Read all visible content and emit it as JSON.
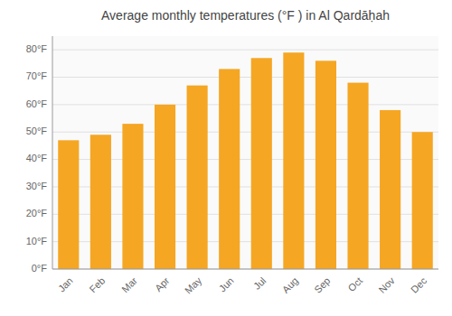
{
  "chart_data": {
    "type": "bar",
    "title": "Average monthly temperatures (°F ) in Al Qardāḥah",
    "categories": [
      "Jan",
      "Feb",
      "Mar",
      "Apr",
      "May",
      "Jun",
      "Jul",
      "Aug",
      "Sep",
      "Oct",
      "Nov",
      "Dec"
    ],
    "values": [
      47,
      49,
      53,
      60,
      67,
      73,
      77,
      79,
      76,
      68,
      58,
      50
    ],
    "color": "#F5A623",
    "ylim": [
      0,
      85
    ],
    "yticks": [
      {
        "value": 0,
        "label": "0°F"
      },
      {
        "value": 10,
        "label": "10°F"
      },
      {
        "value": 20,
        "label": "20°F"
      },
      {
        "value": 30,
        "label": "30°F"
      },
      {
        "value": 40,
        "label": "40°F"
      },
      {
        "value": 50,
        "label": "50°F"
      },
      {
        "value": 60,
        "label": "60°F"
      },
      {
        "value": 70,
        "label": "70°F"
      },
      {
        "value": 80,
        "label": "80°F"
      }
    ],
    "grid": true
  }
}
